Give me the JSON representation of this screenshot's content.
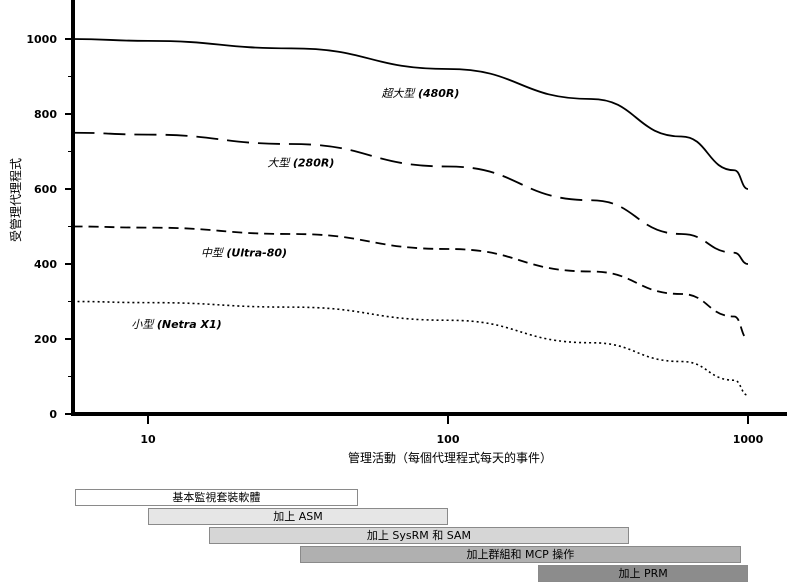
{
  "chart_data": {
    "type": "line",
    "title": "",
    "xlabel": "管理活動（每個代理程式每天的事件）",
    "ylabel": "受管理代理程式",
    "xscale": "log",
    "xlim": [
      5.6,
      1250
    ],
    "ylim": [
      0,
      1100
    ],
    "xticks": [
      {
        "value": 10,
        "label": "10"
      },
      {
        "value": 100,
        "label": "100"
      },
      {
        "value": 1000,
        "label": "1000"
      }
    ],
    "yticks": [
      {
        "value": 0,
        "label": "0"
      },
      {
        "value": 200,
        "label": "200"
      },
      {
        "value": 400,
        "label": "400"
      },
      {
        "value": 600,
        "label": "600"
      },
      {
        "value": 800,
        "label": "800"
      },
      {
        "value": 1000,
        "label": "1000"
      }
    ],
    "series": [
      {
        "label_cjk": "超大型",
        "label_name": "(480R)",
        "style": "solid",
        "label_at": [
          60,
          845
        ],
        "points": [
          [
            5.6,
            1000
          ],
          [
            10,
            995
          ],
          [
            30,
            975
          ],
          [
            100,
            920
          ],
          [
            300,
            840
          ],
          [
            600,
            740
          ],
          [
            900,
            650
          ],
          [
            1000,
            600
          ]
        ]
      },
      {
        "label_cjk": "大型",
        "label_name": "(280R)",
        "style": "longdash",
        "label_at": [
          25,
          660
        ],
        "points": [
          [
            5.6,
            750
          ],
          [
            10,
            745
          ],
          [
            30,
            720
          ],
          [
            100,
            660
          ],
          [
            300,
            570
          ],
          [
            600,
            480
          ],
          [
            900,
            430
          ],
          [
            1000,
            400
          ]
        ]
      },
      {
        "label_cjk": "中型",
        "label_name": "(Ultra-80)",
        "style": "dash",
        "label_at": [
          15,
          420
        ],
        "points": [
          [
            5.6,
            500
          ],
          [
            10,
            497
          ],
          [
            30,
            480
          ],
          [
            100,
            440
          ],
          [
            300,
            380
          ],
          [
            600,
            320
          ],
          [
            900,
            260
          ],
          [
            1000,
            200
          ]
        ]
      },
      {
        "label_cjk": "小型",
        "label_name": "(Netra X1)",
        "style": "dot",
        "label_at": [
          8.8,
          230
        ],
        "points": [
          [
            5.6,
            300
          ],
          [
            10,
            297
          ],
          [
            30,
            285
          ],
          [
            100,
            250
          ],
          [
            300,
            190
          ],
          [
            600,
            140
          ],
          [
            900,
            90
          ],
          [
            1000,
            50
          ]
        ]
      }
    ]
  },
  "bands": [
    {
      "label": "基本監視套裝軟體",
      "from": 5.6,
      "to": 50,
      "color": "#ffffff"
    },
    {
      "label": "加上 ASM",
      "from": 10,
      "to": 100,
      "color": "#e6e6e6"
    },
    {
      "label": "加上 SysRM 和 SAM",
      "from": 16,
      "to": 400,
      "color": "#d6d6d6"
    },
    {
      "label": "加上群組和 MCP 操作",
      "from": 32,
      "to": 950,
      "color": "#b0b0b0"
    },
    {
      "label": "加上 PRM",
      "from": 200,
      "to": 1000,
      "color": "#8c8c8c"
    }
  ]
}
